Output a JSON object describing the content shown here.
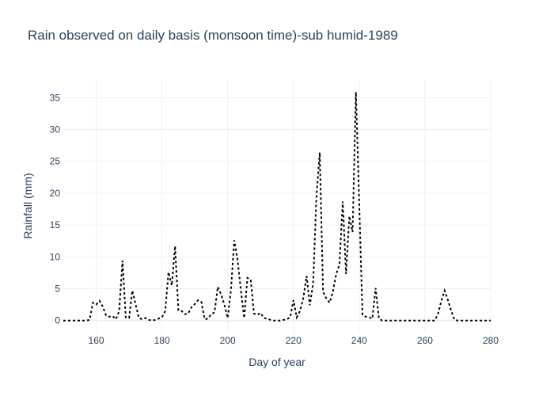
{
  "chart_data": {
    "type": "line",
    "title": "Rain observed on daily basis (monsoon time)-sub humid-1989",
    "xlabel": "Day of year",
    "ylabel": "Rainfall (mm)",
    "xlim": [
      150,
      280
    ],
    "ylim": [
      -1.9,
      37.9
    ],
    "x_ticks": [
      160,
      180,
      200,
      220,
      240,
      260,
      280
    ],
    "y_ticks": [
      0,
      5,
      10,
      15,
      20,
      25,
      30,
      35
    ],
    "grid": true,
    "legend": "none",
    "colors": {
      "line": "#000000",
      "grid": "#ebf0f8",
      "text": "#2a3f5f"
    },
    "line_style": "dotted",
    "series": [
      {
        "x": [
          150,
          151,
          152,
          153,
          154,
          155,
          156,
          157,
          158,
          159,
          160,
          161,
          162,
          163,
          164,
          165,
          166,
          167,
          168,
          169,
          170,
          171,
          172,
          173,
          174,
          175,
          176,
          177,
          178,
          179,
          180,
          181,
          182,
          183,
          184,
          185,
          186,
          187,
          188,
          189,
          190,
          191,
          192,
          193,
          194,
          195,
          196,
          197,
          198,
          199,
          200,
          201,
          202,
          203,
          204,
          205,
          206,
          207,
          208,
          209,
          210,
          211,
          212,
          213,
          214,
          215,
          216,
          217,
          218,
          219,
          220,
          221,
          222,
          223,
          224,
          225,
          226,
          227,
          228,
          229,
          230,
          231,
          232,
          233,
          234,
          235,
          236,
          237,
          238,
          239,
          240,
          241,
          242,
          243,
          244,
          245,
          246,
          247,
          248,
          249,
          250,
          251,
          252,
          253,
          254,
          255,
          256,
          257,
          258,
          259,
          260,
          261,
          262,
          263,
          264,
          265,
          266,
          267,
          268,
          269,
          270,
          271,
          272,
          273,
          274,
          275,
          276,
          277,
          278,
          279,
          280
        ],
        "y": [
          0,
          0,
          0,
          0,
          0,
          0,
          0,
          0,
          0.1,
          2.8,
          2.5,
          3.1,
          2.2,
          0.8,
          0.6,
          0.7,
          0.2,
          1.5,
          9.4,
          0.5,
          0.4,
          4.7,
          2.5,
          0.4,
          0.2,
          0.4,
          0.1,
          0,
          0.1,
          0.3,
          0.5,
          1.5,
          7.6,
          5.5,
          11.7,
          1.6,
          1.5,
          1,
          1.1,
          2.1,
          2.6,
          3.2,
          2.9,
          0.2,
          0.3,
          1,
          1.3,
          5.3,
          4.1,
          2.5,
          0.4,
          4.8,
          12.6,
          9.5,
          4.8,
          0.4,
          6.7,
          6.4,
          1.1,
          0.9,
          1.2,
          0.4,
          0.3,
          0.1,
          0,
          0,
          0,
          0.1,
          0.2,
          0.5,
          3.2,
          0.5,
          1.5,
          3.5,
          7,
          2.4,
          5.9,
          19.4,
          26.4,
          4.5,
          3.5,
          2.8,
          4.5,
          7.3,
          8.8,
          18.7,
          7.3,
          16.4,
          13.9,
          35.9,
          18.7,
          0.9,
          0.6,
          0.5,
          0.3,
          5.1,
          0.3,
          0,
          0,
          0,
          0,
          0,
          0,
          0,
          0,
          0,
          0,
          0,
          0,
          0,
          0,
          0,
          0,
          0,
          1.1,
          3.1,
          4.7,
          3.2,
          1.5,
          0.1,
          0,
          0,
          0,
          0,
          0,
          0,
          0,
          0,
          0,
          0,
          0
        ]
      }
    ]
  }
}
